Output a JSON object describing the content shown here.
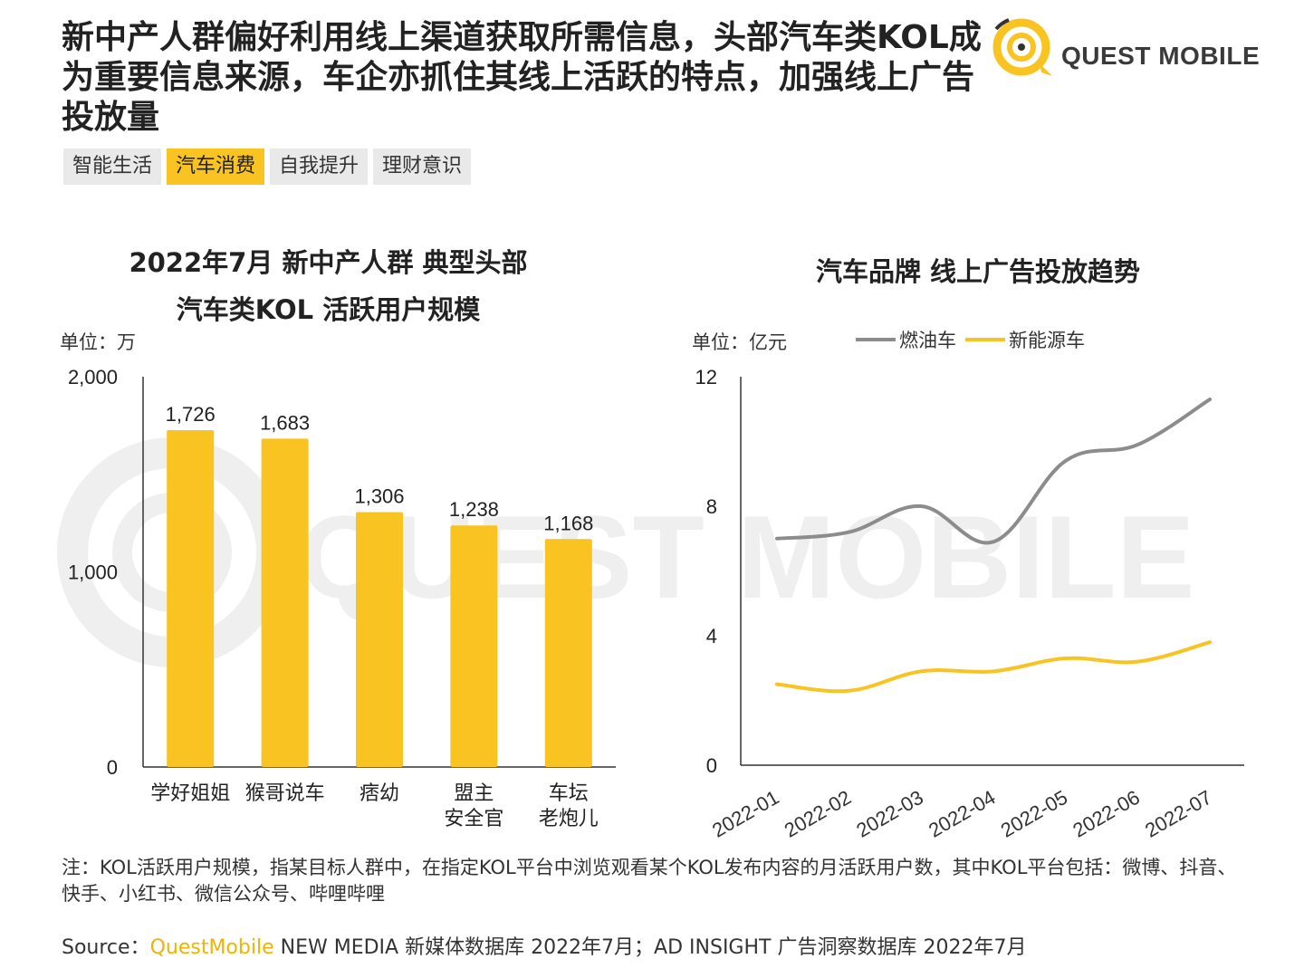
{
  "headline": "新中产人群偏好利用线上渠道获取所需信息，头部汽车类KOL成为重要信息来源，车企亦抓住其线上活跃的特点，加强线上广告投放量",
  "logo": {
    "text": "QUEST MOBILE",
    "watermark": "QUEST MOBILE",
    "accent": "#f9c322"
  },
  "tabs": [
    {
      "label": "智能生活",
      "active": false
    },
    {
      "label": "汽车消费",
      "active": true
    },
    {
      "label": "自我提升",
      "active": false
    },
    {
      "label": "理财意识",
      "active": false
    }
  ],
  "chart_data": [
    {
      "type": "bar",
      "title_line1": "2022年7月 新中产人群 典型头部",
      "title_line2": "汽车类KOL 活跃用户规模",
      "unit": "单位：万",
      "categories": [
        {
          "line1": "学好姐姐",
          "line2": ""
        },
        {
          "line1": "猴哥说车",
          "line2": ""
        },
        {
          "line1": "痞幼",
          "line2": ""
        },
        {
          "line1": "盟主",
          "line2": "安全官"
        },
        {
          "line1": "车坛",
          "line2": "老炮儿"
        }
      ],
      "values": [
        1726,
        1683,
        1306,
        1238,
        1168
      ],
      "value_labels": [
        "1,726",
        "1,683",
        "1,306",
        "1,238",
        "1,168"
      ],
      "ylim": [
        0,
        2000
      ],
      "yticks": [
        0,
        1000,
        2000
      ],
      "ytick_labels": [
        "0",
        "1,000",
        "2,000"
      ],
      "bar_color": "#f9c322",
      "grid": false
    },
    {
      "type": "line",
      "title": "汽车品牌 线上广告投放趋势",
      "unit": "单位：亿元",
      "x": [
        "2022-01",
        "2022-02",
        "2022-03",
        "2022-04",
        "2022-05",
        "2022-06",
        "2022-07"
      ],
      "series": [
        {
          "name": "燃油车",
          "color": "#8c8c8c",
          "values": [
            7.0,
            7.2,
            8.0,
            6.9,
            9.4,
            9.9,
            11.3
          ]
        },
        {
          "name": "新能源车",
          "color": "#f9c322",
          "values": [
            2.5,
            2.3,
            2.9,
            2.9,
            3.3,
            3.2,
            3.8
          ]
        }
      ],
      "ylim": [
        0,
        12
      ],
      "yticks": [
        0,
        4,
        8,
        12
      ],
      "legend": "top",
      "grid": false
    }
  ],
  "note": "注：KOL活跃用户规模，指某目标人群中，在指定KOL平台中浏览观看某个KOL发布内容的月活跃用户数，其中KOL平台包括：微博、抖音、快手、小红书、微信公众号、哔哩哔哩",
  "source": {
    "prefix": "Source：",
    "brand": "QuestMobile",
    "rest": " NEW MEDIA 新媒体数据库 2022年7月；AD INSIGHT 广告洞察数据库 2022年7月"
  }
}
